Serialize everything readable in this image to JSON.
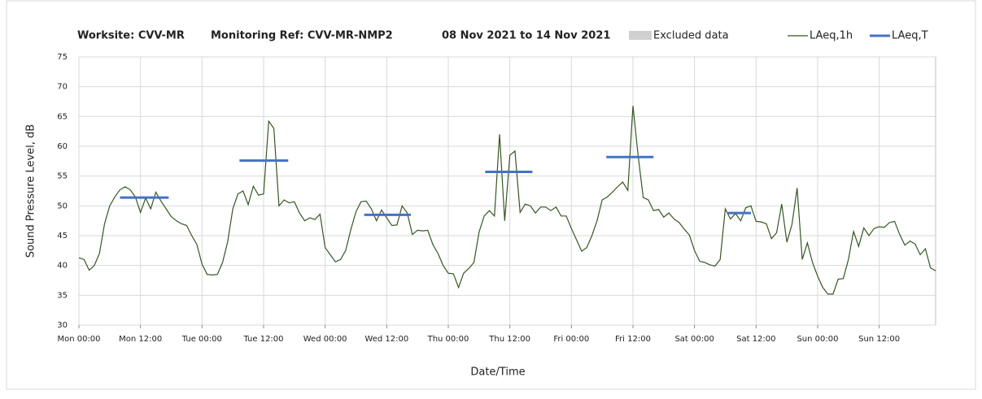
{
  "chart_data": {
    "type": "line",
    "title": [
      "Worksite: CVV-MR",
      "Monitoring Ref: CVV-MR-NMP2",
      "08 Nov 2021 to 14 Nov 2021"
    ],
    "xlabel": "Date/Time",
    "ylabel": "Sound Pressure Level, dB",
    "legend": [
      "Excluded data"
    ],
    "excluded_color": "#d0d0d0",
    "xlim": [
      0,
      167
    ],
    "xticks": [
      {
        "value": 0,
        "label": "Mon 00:00"
      },
      {
        "value": 12,
        "label": "Mon 12:00"
      },
      {
        "value": 24,
        "label": "Tue 00:00"
      },
      {
        "value": 36,
        "label": "Tue 12:00"
      },
      {
        "value": 48,
        "label": "Wed 00:00"
      },
      {
        "value": 60,
        "label": "Wed 12:00"
      },
      {
        "value": 72,
        "label": "Thu 00:00"
      },
      {
        "value": 84,
        "label": "Thu 12:00"
      },
      {
        "value": 96,
        "label": "Fri 00:00"
      },
      {
        "value": 108,
        "label": "Fri 12:00"
      },
      {
        "value": 120,
        "label": "Sat 00:00"
      },
      {
        "value": 132,
        "label": "Sat 12:00"
      },
      {
        "value": 144,
        "label": "Sun 00:00"
      },
      {
        "value": 156,
        "label": "Sun 12:00"
      }
    ],
    "ylim": [
      30,
      75
    ],
    "yticks": [
      30,
      35,
      40,
      45,
      50,
      55,
      60,
      65,
      70,
      75
    ],
    "grid": true,
    "x": [
      0,
      1,
      2,
      3,
      4,
      5,
      6,
      7,
      8,
      9,
      10,
      11,
      12,
      13,
      14,
      15,
      16,
      17,
      18,
      19,
      20,
      21,
      22,
      23,
      24,
      25,
      26,
      27,
      28,
      29,
      30,
      31,
      32,
      33,
      34,
      35,
      36,
      37,
      38,
      39,
      40,
      41,
      42,
      43,
      44,
      45,
      46,
      47,
      48,
      49,
      50,
      51,
      52,
      53,
      54,
      55,
      56,
      57,
      58,
      59,
      60,
      61,
      62,
      63,
      64,
      65,
      66,
      67,
      68,
      69,
      70,
      71,
      72,
      73,
      74,
      75,
      76,
      77,
      78,
      79,
      80,
      81,
      82,
      83,
      84,
      85,
      86,
      87,
      88,
      89,
      90,
      91,
      92,
      93,
      94,
      95,
      96,
      97,
      98,
      99,
      100,
      101,
      102,
      103,
      104,
      105,
      106,
      107,
      108,
      109,
      110,
      111,
      112,
      113,
      114,
      115,
      116,
      117,
      118,
      119,
      120,
      121,
      122,
      123,
      124,
      125,
      126,
      127,
      128,
      129,
      130,
      131,
      132,
      133,
      134,
      135,
      136,
      137,
      138,
      139,
      140,
      141,
      142,
      143,
      144,
      145,
      146,
      147,
      148,
      149,
      150,
      151,
      152,
      153,
      154,
      155,
      156,
      157,
      158,
      159,
      160,
      161,
      162,
      163,
      164,
      165,
      166,
      167
    ],
    "series": [
      {
        "name": "LAeq,1h",
        "color": "#375623",
        "values": [
          41.3,
          41,
          39.2,
          40,
          42,
          47,
          50,
          51.5,
          52.7,
          53.2,
          52.7,
          51.5,
          48.9,
          51.3,
          49.5,
          52.3,
          50.8,
          49.5,
          48.2,
          47.5,
          47,
          46.7,
          45,
          43.5,
          40.2,
          38.5,
          38.4,
          38.5,
          40.5,
          44,
          49.5,
          52,
          52.5,
          50.2,
          53.3,
          51.8,
          52,
          64.2,
          63,
          50,
          51,
          50.5,
          50.7,
          48.8,
          47.5,
          48,
          47.7,
          48.6,
          43,
          41.8,
          40.6,
          41,
          42.5,
          46,
          49,
          50.7,
          50.8,
          49.5,
          47.5,
          49.3,
          48,
          46.7,
          46.8,
          50,
          48.8,
          45.2,
          45.9,
          45.8,
          45.9,
          43.5,
          42,
          40,
          38.7,
          38.6,
          36.3,
          38.7,
          39.5,
          40.5,
          45.6,
          48.3,
          49.2,
          48.3,
          62,
          47.5,
          58.5,
          59.2,
          48.9,
          50.3,
          50,
          48.8,
          49.8,
          49.8,
          49.2,
          49.8,
          48.3,
          48.3,
          46.2,
          44.3,
          42.4,
          43,
          45,
          47.5,
          51,
          51.5,
          52.3,
          53.2,
          54,
          52.6,
          66.8,
          58.5,
          51.4,
          51,
          49.2,
          49.4,
          48.1,
          48.8,
          47.8,
          47.2,
          46.1,
          45.1,
          42.5,
          40.7,
          40.5,
          40.1,
          39.9,
          41,
          49.5,
          47.8,
          48.7,
          47.5,
          49.7,
          50,
          47.4,
          47.3,
          47,
          44.5,
          45.5,
          50.3,
          43.9,
          46.9,
          53,
          41,
          43.8,
          40.5,
          38.2,
          36.3,
          35.2,
          35.2,
          37.7,
          37.8,
          41,
          45.7,
          43.2,
          46.3,
          45,
          46.2,
          46.5,
          46.4,
          47.2,
          47.4,
          45.2,
          43.4,
          44.1,
          43.6,
          41.8,
          42.8,
          39.6,
          39.1
        ]
      },
      {
        "name": "LAeq,T",
        "color": "#4472c4",
        "segments": [
          {
            "x": [
              8,
              17.5
            ],
            "value": 51.4
          },
          {
            "x": [
              31.3,
              40.8
            ],
            "value": 57.6
          },
          {
            "x": [
              55.6,
              64.7
            ],
            "value": 48.5
          },
          {
            "x": [
              79.2,
              88.4
            ],
            "value": 55.7
          },
          {
            "x": [
              102.8,
              112
            ],
            "value": 58.2
          },
          {
            "x": [
              126.5,
              131
            ],
            "value": 48.8
          }
        ]
      }
    ]
  }
}
